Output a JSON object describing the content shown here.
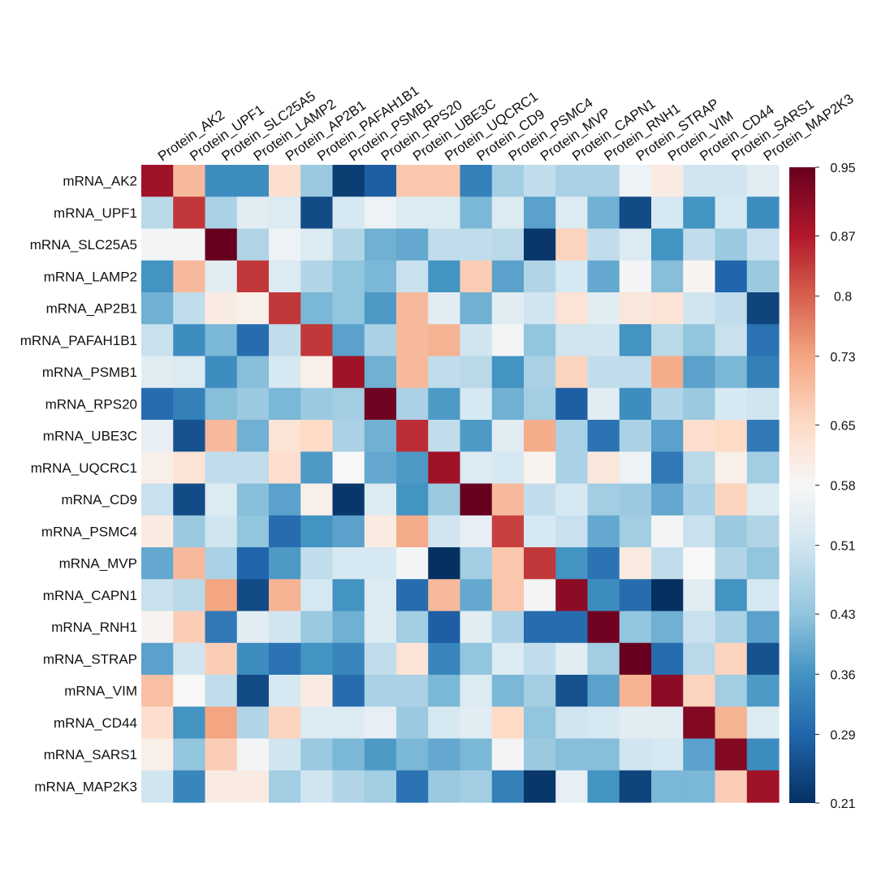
{
  "chart_data": {
    "type": "heatmap",
    "title": "",
    "xlabel": "",
    "ylabel": "",
    "x_categories": [
      "Protein_AK2",
      "Protein_UPF1",
      "Protein_SLC25A5",
      "Protein_LAMP2",
      "Protein_AP2B1",
      "Protein_PAFAH1B1",
      "Protein_PSMB1",
      "Protein_RPS20",
      "Protein_UBE3C",
      "Protein_UQCRC1",
      "Protein_CD9",
      "Protein_PSMC4",
      "Protein_MVP",
      "Protein_CAPN1",
      "Protein_RNH1",
      "Protein_STRAP",
      "Protein_VIM",
      "Protein_CD44",
      "Protein_SARS1",
      "Protein_MAP2K3"
    ],
    "y_categories": [
      "mRNA_AK2",
      "mRNA_UPF1",
      "mRNA_SLC25A5",
      "mRNA_LAMP2",
      "mRNA_AP2B1",
      "mRNA_PAFAH1B1",
      "mRNA_PSMB1",
      "mRNA_RPS20",
      "mRNA_UBE3C",
      "mRNA_UQCRC1",
      "mRNA_CD9",
      "mRNA_PSMC4",
      "mRNA_MVP",
      "mRNA_CAPN1",
      "mRNA_RNH1",
      "mRNA_STRAP",
      "mRNA_VIM",
      "mRNA_CD44",
      "mRNA_SARS1",
      "mRNA_MAP2K3"
    ],
    "values": [
      [
        0.89,
        0.7,
        0.35,
        0.35,
        0.64,
        0.44,
        0.23,
        0.28,
        0.68,
        0.68,
        0.33,
        0.45,
        0.49,
        0.46,
        0.46,
        0.56,
        0.61,
        0.51,
        0.51,
        0.54
      ],
      [
        0.48,
        0.84,
        0.46,
        0.54,
        0.53,
        0.25,
        0.52,
        0.56,
        0.53,
        0.53,
        0.41,
        0.53,
        0.38,
        0.53,
        0.4,
        0.25,
        0.52,
        0.36,
        0.52,
        0.35
      ],
      [
        0.57,
        0.57,
        0.95,
        0.47,
        0.56,
        0.53,
        0.47,
        0.4,
        0.39,
        0.49,
        0.49,
        0.48,
        0.22,
        0.66,
        0.49,
        0.53,
        0.36,
        0.49,
        0.44,
        0.5
      ],
      [
        0.36,
        0.7,
        0.54,
        0.84,
        0.53,
        0.47,
        0.43,
        0.41,
        0.5,
        0.36,
        0.67,
        0.38,
        0.47,
        0.52,
        0.39,
        0.57,
        0.42,
        0.59,
        0.29,
        0.44
      ],
      [
        0.4,
        0.49,
        0.61,
        0.6,
        0.84,
        0.41,
        0.43,
        0.37,
        0.7,
        0.54,
        0.4,
        0.54,
        0.51,
        0.63,
        0.54,
        0.62,
        0.63,
        0.51,
        0.49,
        0.24
      ],
      [
        0.5,
        0.35,
        0.41,
        0.3,
        0.49,
        0.84,
        0.38,
        0.46,
        0.7,
        0.71,
        0.51,
        0.57,
        0.43,
        0.51,
        0.51,
        0.36,
        0.48,
        0.43,
        0.5,
        0.31
      ],
      [
        0.54,
        0.53,
        0.35,
        0.42,
        0.52,
        0.6,
        0.89,
        0.4,
        0.7,
        0.49,
        0.48,
        0.36,
        0.46,
        0.66,
        0.49,
        0.49,
        0.72,
        0.38,
        0.41,
        0.33
      ],
      [
        0.3,
        0.33,
        0.42,
        0.44,
        0.41,
        0.44,
        0.45,
        0.94,
        0.46,
        0.37,
        0.52,
        0.4,
        0.45,
        0.28,
        0.54,
        0.35,
        0.47,
        0.44,
        0.52,
        0.51
      ],
      [
        0.55,
        0.26,
        0.7,
        0.4,
        0.63,
        0.65,
        0.46,
        0.4,
        0.85,
        0.49,
        0.37,
        0.54,
        0.72,
        0.46,
        0.31,
        0.46,
        0.38,
        0.64,
        0.65,
        0.32
      ],
      [
        0.6,
        0.63,
        0.49,
        0.49,
        0.64,
        0.37,
        0.58,
        0.39,
        0.37,
        0.89,
        0.53,
        0.52,
        0.59,
        0.46,
        0.62,
        0.56,
        0.32,
        0.48,
        0.6,
        0.45
      ],
      [
        0.5,
        0.25,
        0.53,
        0.42,
        0.38,
        0.6,
        0.22,
        0.53,
        0.36,
        0.44,
        0.95,
        0.7,
        0.49,
        0.52,
        0.45,
        0.44,
        0.39,
        0.46,
        0.66,
        0.53
      ],
      [
        0.61,
        0.44,
        0.51,
        0.43,
        0.3,
        0.36,
        0.38,
        0.61,
        0.72,
        0.51,
        0.55,
        0.83,
        0.52,
        0.5,
        0.39,
        0.45,
        0.57,
        0.5,
        0.44,
        0.47
      ],
      [
        0.39,
        0.7,
        0.46,
        0.29,
        0.37,
        0.49,
        0.52,
        0.52,
        0.57,
        0.21,
        0.45,
        0.68,
        0.84,
        0.36,
        0.31,
        0.61,
        0.49,
        0.58,
        0.47,
        0.43
      ],
      [
        0.5,
        0.48,
        0.73,
        0.25,
        0.71,
        0.52,
        0.36,
        0.53,
        0.3,
        0.7,
        0.39,
        0.68,
        0.57,
        0.91,
        0.35,
        0.3,
        0.21,
        0.54,
        0.36,
        0.52
      ],
      [
        0.59,
        0.67,
        0.32,
        0.54,
        0.51,
        0.44,
        0.4,
        0.53,
        0.45,
        0.28,
        0.54,
        0.46,
        0.3,
        0.3,
        0.94,
        0.43,
        0.4,
        0.5,
        0.46,
        0.38
      ],
      [
        0.38,
        0.51,
        0.67,
        0.35,
        0.31,
        0.36,
        0.34,
        0.49,
        0.63,
        0.34,
        0.43,
        0.53,
        0.49,
        0.54,
        0.45,
        0.95,
        0.3,
        0.48,
        0.66,
        0.26
      ],
      [
        0.69,
        0.58,
        0.49,
        0.25,
        0.52,
        0.61,
        0.3,
        0.46,
        0.46,
        0.41,
        0.53,
        0.41,
        0.45,
        0.26,
        0.38,
        0.71,
        0.91,
        0.66,
        0.45,
        0.37
      ],
      [
        0.64,
        0.36,
        0.73,
        0.47,
        0.66,
        0.53,
        0.53,
        0.55,
        0.44,
        0.52,
        0.54,
        0.65,
        0.43,
        0.51,
        0.52,
        0.54,
        0.54,
        0.92,
        0.71,
        0.53
      ],
      [
        0.6,
        0.43,
        0.67,
        0.57,
        0.51,
        0.44,
        0.41,
        0.37,
        0.41,
        0.39,
        0.41,
        0.57,
        0.44,
        0.42,
        0.42,
        0.51,
        0.52,
        0.38,
        0.92,
        0.35
      ],
      [
        0.51,
        0.34,
        0.61,
        0.61,
        0.45,
        0.51,
        0.47,
        0.45,
        0.31,
        0.44,
        0.45,
        0.33,
        0.22,
        0.55,
        0.36,
        0.24,
        0.41,
        0.41,
        0.67,
        0.89
      ]
    ],
    "colorbar": {
      "min": 0.21,
      "max": 0.95,
      "tick_labels": [
        "0.95",
        "0.87",
        "0.8",
        "0.73",
        "0.65",
        "0.58",
        "0.51",
        "0.43",
        "0.36",
        "0.29",
        "0.21"
      ],
      "tick_values": [
        0.95,
        0.87,
        0.8,
        0.73,
        0.65,
        0.58,
        0.51,
        0.43,
        0.36,
        0.29,
        0.21
      ]
    },
    "color_stops": [
      {
        "v": 0.21,
        "c": "#053061"
      },
      {
        "v": 0.29,
        "c": "#2166ac"
      },
      {
        "v": 0.36,
        "c": "#4393c3"
      },
      {
        "v": 0.43,
        "c": "#92c5de"
      },
      {
        "v": 0.51,
        "c": "#d1e5f0"
      },
      {
        "v": 0.58,
        "c": "#f7f7f7"
      },
      {
        "v": 0.65,
        "c": "#fddbc7"
      },
      {
        "v": 0.73,
        "c": "#f4a582"
      },
      {
        "v": 0.8,
        "c": "#d6604d"
      },
      {
        "v": 0.87,
        "c": "#b2182b"
      },
      {
        "v": 0.95,
        "c": "#67001f"
      }
    ]
  }
}
